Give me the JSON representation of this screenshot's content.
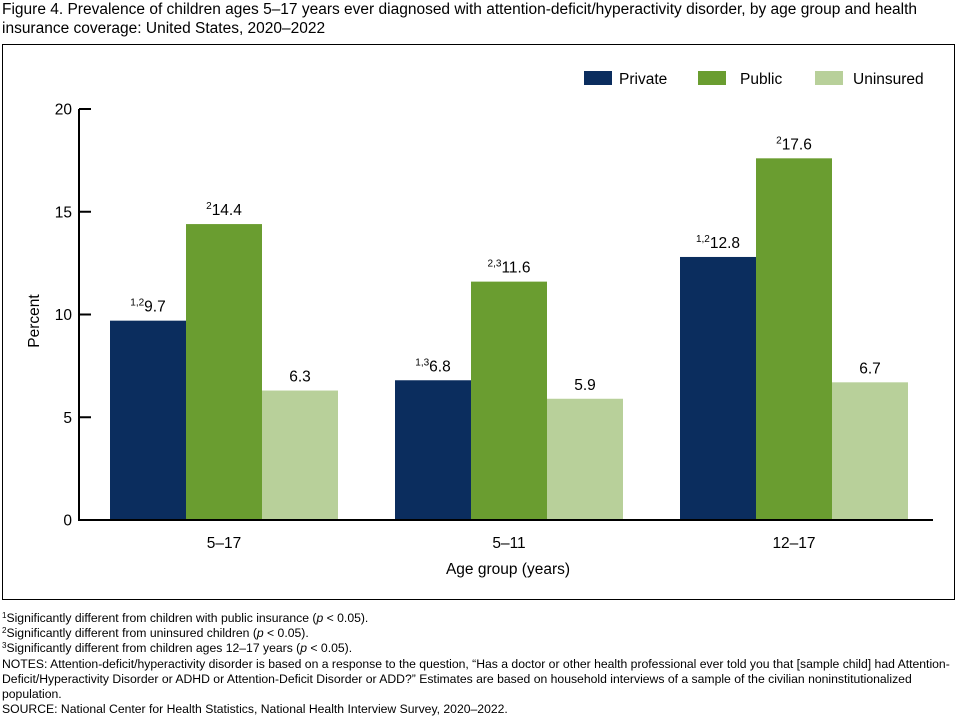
{
  "title": "Figure 4. Prevalence of children ages 5–17 years ever diagnosed with attention-deficit/hyperactivity disorder, by age group and health insurance coverage: United States, 2020–2022",
  "chart_data": {
    "type": "bar",
    "categories": [
      "5–17",
      "5–11",
      "12–17"
    ],
    "series": [
      {
        "name": "Private",
        "color": "#0b2d5e",
        "values": [
          9.7,
          6.8,
          12.8
        ],
        "label_sups": [
          "1,2",
          "1,3",
          "1,2"
        ]
      },
      {
        "name": "Public",
        "color": "#6a9d30",
        "values": [
          14.4,
          11.6,
          17.6
        ],
        "label_sups": [
          "2",
          "2,3",
          "2"
        ]
      },
      {
        "name": "Uninsured",
        "color": "#b8d09a",
        "values": [
          6.3,
          5.9,
          6.7
        ],
        "label_sups": [
          "",
          "",
          ""
        ]
      }
    ],
    "value_labels": [
      [
        "9.7",
        "6.8",
        "12.8"
      ],
      [
        "14.4",
        "11.6",
        "17.6"
      ],
      [
        "6.3",
        "5.9",
        "6.7"
      ]
    ],
    "xlabel": "Age group (years)",
    "ylabel": "Percent",
    "ylim": [
      0,
      20
    ],
    "yticks": [
      0,
      5,
      10,
      15,
      20
    ],
    "ytick_labels": [
      "0",
      "5",
      "10",
      "15",
      "20"
    ],
    "legend_position": "top-right",
    "grid": false
  },
  "footnotes": [
    {
      "sup": "1",
      "before": "Significantly different from children with public insurance (",
      "italic": "p",
      "after": " < 0.05)."
    },
    {
      "sup": "2",
      "before": "Significantly different from uninsured children (",
      "italic": "p",
      "after": " < 0.05)."
    },
    {
      "sup": "3",
      "before": "Significantly different from children ages 12–17 years (",
      "italic": "p",
      "after": " < 0.05)."
    }
  ],
  "notes": "NOTES: Attention-deficit/hyperactivity disorder is based on a response to the question, “Has a doctor or other health professional ever told you that [sample child] had Attention-Deficit/Hyperactivity Disorder or ADHD or Attention-Deficit Disorder or ADD?” Estimates are based on household interviews of a sample of the civilian noninstitutionalized population.",
  "source": "SOURCE: National Center for Health Statistics, National Health Interview Survey, 2020–2022."
}
